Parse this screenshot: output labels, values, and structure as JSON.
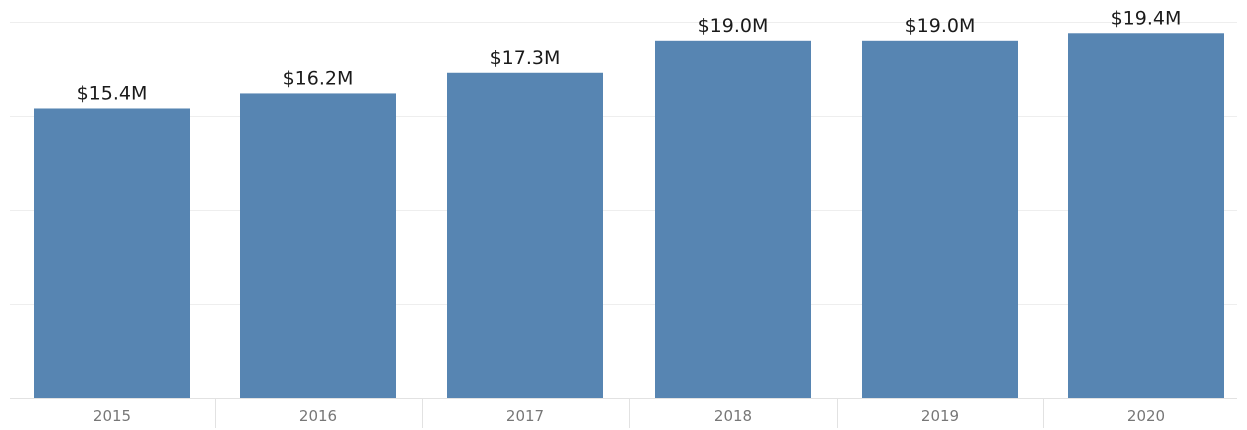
{
  "chart_data": {
    "type": "bar",
    "categories": [
      "2015",
      "2016",
      "2017",
      "2018",
      "2019",
      "2020"
    ],
    "values": [
      15.4,
      16.2,
      17.3,
      19.0,
      19.0,
      19.4
    ],
    "data_labels": [
      "$15.4M",
      "$16.2M",
      "$17.3M",
      "$19.0M",
      "$19.0M",
      "$19.4M"
    ],
    "title": "",
    "xlabel": "",
    "ylabel": "",
    "ylim": [
      0,
      20
    ],
    "y_gridlines": [
      5,
      10,
      15,
      20
    ],
    "grid": true,
    "legend": "none",
    "colors": {
      "bar": "#5785b2",
      "grid": "#eeeeee",
      "axis": "#e2e2e2",
      "tick_text": "#777777",
      "label_text": "#1a1a1a"
    }
  }
}
